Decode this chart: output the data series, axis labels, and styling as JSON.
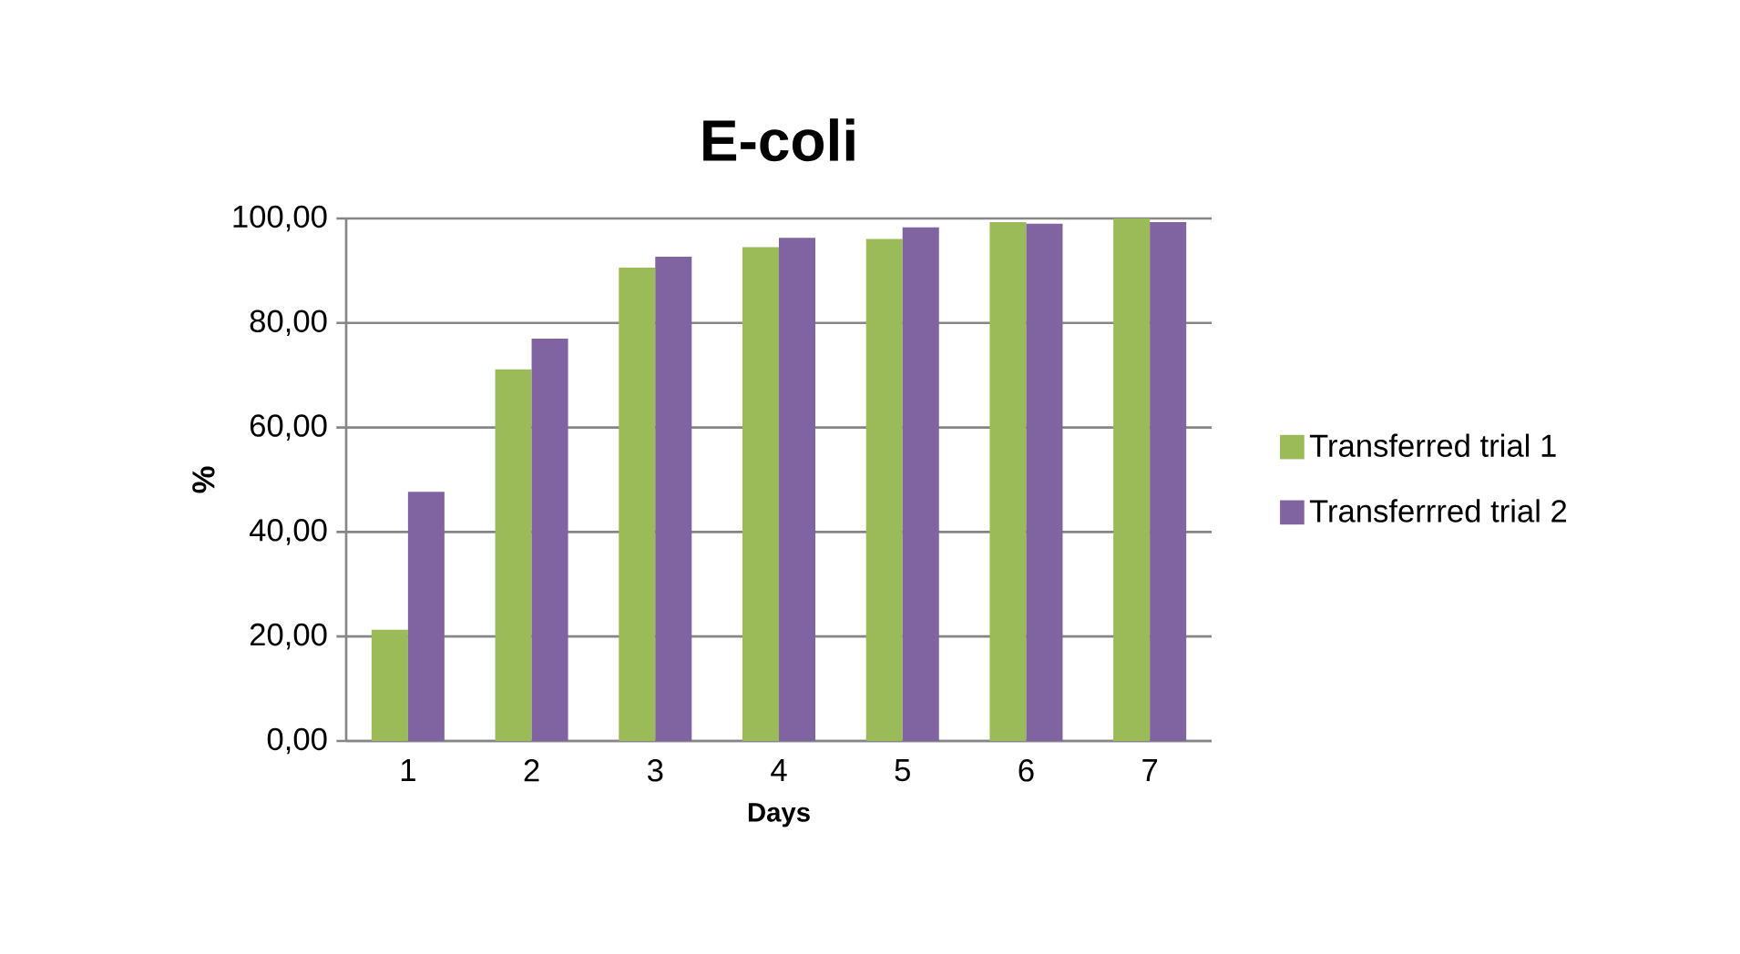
{
  "chart_data": {
    "type": "bar",
    "title": "E-coli",
    "xlabel": "Days",
    "ylabel": "%",
    "categories": [
      "1",
      "2",
      "3",
      "4",
      "5",
      "6",
      "7"
    ],
    "series": [
      {
        "name": "Transferred trial 1",
        "color": "#9bbb59",
        "values": [
          21.3,
          71.1,
          90.6,
          94.5,
          96.1,
          99.3,
          100
        ]
      },
      {
        "name": "Transferrred trial 2",
        "color": "#8064a2",
        "values": [
          47.7,
          77.0,
          92.7,
          96.3,
          98.3,
          99.0,
          99.3
        ]
      }
    ],
    "ylim": [
      0,
      100
    ],
    "yticks": [
      {
        "value": 0,
        "label": "0,00"
      },
      {
        "value": 20,
        "label": "20,00"
      },
      {
        "value": 40,
        "label": "40,00"
      },
      {
        "value": 60,
        "label": "60,00"
      },
      {
        "value": 80,
        "label": "80,00"
      },
      {
        "value": 100,
        "label": "100,00"
      }
    ],
    "grid": "y",
    "legend": "right"
  }
}
